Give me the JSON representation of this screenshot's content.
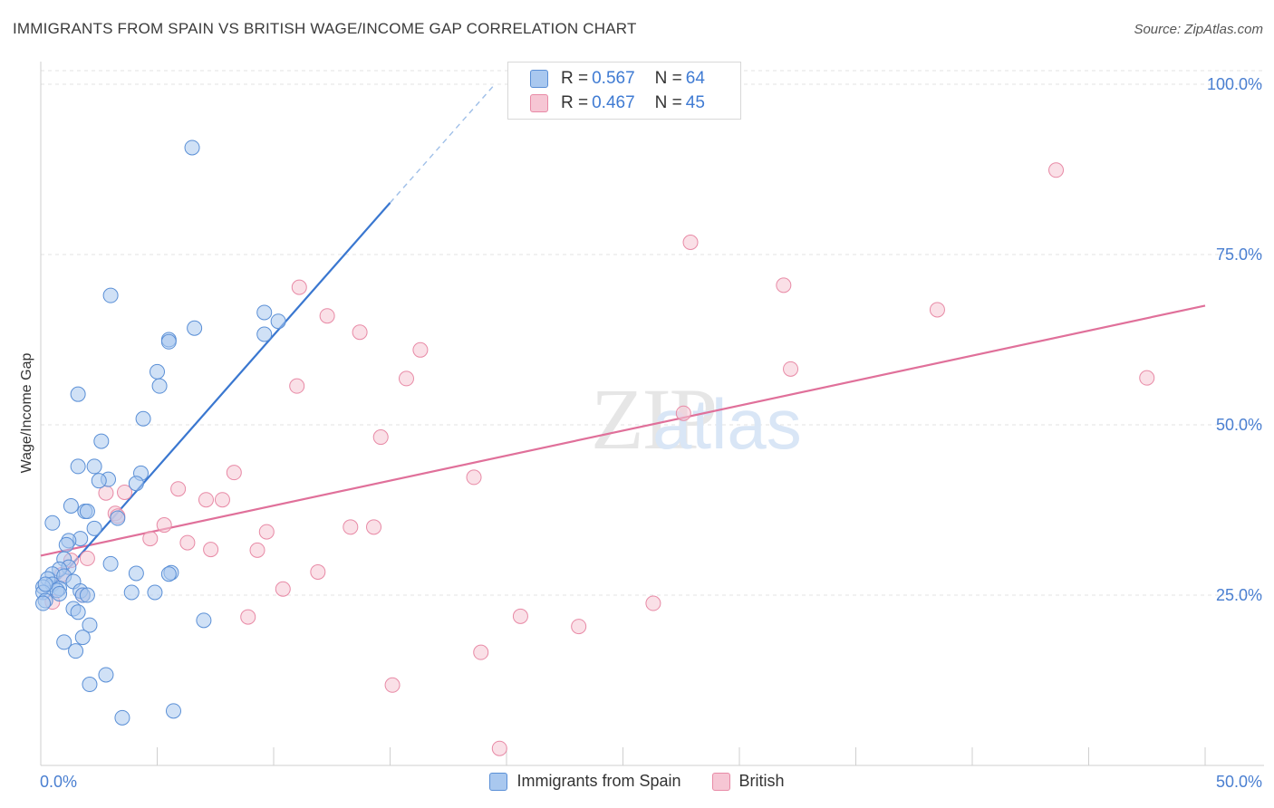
{
  "title": "IMMIGRANTS FROM SPAIN VS BRITISH WAGE/INCOME GAP CORRELATION CHART",
  "source": "Source: ZipAtlas.com",
  "legend": {
    "rows": [
      {
        "r_label": "R =",
        "r_value": "0.567",
        "n_label": "N =",
        "n_value": "64",
        "color": "#a9c8ef",
        "border": "#5a8fd6"
      },
      {
        "r_label": "R =",
        "r_value": "0.467",
        "n_label": "N =",
        "n_value": "45",
        "color": "#f6c6d4",
        "border": "#e88aa6"
      }
    ]
  },
  "bottom_legend": [
    "Immigrants from Spain",
    "British"
  ],
  "chart_data": {
    "type": "scatter",
    "title": "IMMIGRANTS FROM SPAIN VS BRITISH WAGE/INCOME GAP CORRELATION CHART",
    "xlabel": "",
    "ylabel": "Wage/Income Gap",
    "xlim": [
      0,
      50
    ],
    "ylim": [
      0,
      102
    ],
    "x_tick_labels": [
      "0.0%",
      "50.0%"
    ],
    "y_tick_labels": [
      "25.0%",
      "50.0%",
      "75.0%",
      "100.0%"
    ],
    "y_ticks": [
      25,
      50,
      75,
      100
    ],
    "grid": true,
    "legend_position": "top-center",
    "watermark": "ZIPatlas",
    "series": [
      {
        "name": "Immigrants from Spain",
        "color": "#a9c8ef",
        "edge": "#5a8fd6",
        "trend_color": "#3a77d0",
        "trend": {
          "x0": 0.05,
          "y0": 24.5,
          "x1": 15,
          "y1": 82.6,
          "dash_x1": 19.5,
          "dash_y1": 100
        },
        "points": [
          [
            6.5,
            90.7
          ],
          [
            3.0,
            69.0
          ],
          [
            9.6,
            66.5
          ],
          [
            10.2,
            65.2
          ],
          [
            6.6,
            64.2
          ],
          [
            9.6,
            63.3
          ],
          [
            5.5,
            62.5
          ],
          [
            5.5,
            62.2
          ],
          [
            5.0,
            57.8
          ],
          [
            5.1,
            55.7
          ],
          [
            1.6,
            54.5
          ],
          [
            4.4,
            50.9
          ],
          [
            2.6,
            47.6
          ],
          [
            1.6,
            43.9
          ],
          [
            2.3,
            43.9
          ],
          [
            4.3,
            42.9
          ],
          [
            2.9,
            42.0
          ],
          [
            2.5,
            41.8
          ],
          [
            4.1,
            41.4
          ],
          [
            1.3,
            38.1
          ],
          [
            1.9,
            37.3
          ],
          [
            2.0,
            37.3
          ],
          [
            3.3,
            36.3
          ],
          [
            0.5,
            35.6
          ],
          [
            2.3,
            34.8
          ],
          [
            1.7,
            33.3
          ],
          [
            1.2,
            33.0
          ],
          [
            1.1,
            32.4
          ],
          [
            1.0,
            30.3
          ],
          [
            3.0,
            29.6
          ],
          [
            1.2,
            29.1
          ],
          [
            0.8,
            28.8
          ],
          [
            4.1,
            28.2
          ],
          [
            5.6,
            28.3
          ],
          [
            5.5,
            28.1
          ],
          [
            0.5,
            28.1
          ],
          [
            1.0,
            27.8
          ],
          [
            0.3,
            27.4
          ],
          [
            1.4,
            27.0
          ],
          [
            0.5,
            26.6
          ],
          [
            0.1,
            26.2
          ],
          [
            0.8,
            26.0
          ],
          [
            0.7,
            25.7
          ],
          [
            1.7,
            25.6
          ],
          [
            0.1,
            25.4
          ],
          [
            3.9,
            25.4
          ],
          [
            4.9,
            25.4
          ],
          [
            1.8,
            25.0
          ],
          [
            2.0,
            25.0
          ],
          [
            0.8,
            25.2
          ],
          [
            0.2,
            24.2
          ],
          [
            0.1,
            23.8
          ],
          [
            1.4,
            23.0
          ],
          [
            1.6,
            22.5
          ],
          [
            7.0,
            21.3
          ],
          [
            2.1,
            20.6
          ],
          [
            1.0,
            18.1
          ],
          [
            1.8,
            18.8
          ],
          [
            1.5,
            16.8
          ],
          [
            2.8,
            13.3
          ],
          [
            2.1,
            11.9
          ],
          [
            5.7,
            8.0
          ],
          [
            3.5,
            7.0
          ],
          [
            0.2,
            26.6
          ]
        ]
      },
      {
        "name": "British",
        "color": "#f6c6d4",
        "edge": "#e88aa6",
        "trend_color": "#e0709a",
        "trend": {
          "x0": 0,
          "y0": 30.8,
          "x1": 50,
          "y1": 67.5
        },
        "points": [
          [
            43.6,
            87.4
          ],
          [
            27.9,
            76.8
          ],
          [
            31.9,
            70.5
          ],
          [
            11.1,
            70.2
          ],
          [
            38.5,
            66.9
          ],
          [
            12.3,
            66.0
          ],
          [
            13.7,
            63.6
          ],
          [
            16.3,
            61.0
          ],
          [
            32.2,
            58.2
          ],
          [
            15.7,
            56.8
          ],
          [
            47.5,
            56.9
          ],
          [
            11.0,
            55.7
          ],
          [
            27.6,
            51.7
          ],
          [
            14.6,
            48.2
          ],
          [
            18.6,
            42.3
          ],
          [
            8.3,
            43.0
          ],
          [
            5.9,
            40.6
          ],
          [
            3.6,
            40.1
          ],
          [
            2.8,
            40.0
          ],
          [
            7.1,
            39.0
          ],
          [
            7.8,
            39.0
          ],
          [
            3.2,
            37.0
          ],
          [
            3.3,
            36.6
          ],
          [
            5.3,
            35.3
          ],
          [
            13.3,
            35.0
          ],
          [
            14.3,
            35.0
          ],
          [
            9.7,
            34.3
          ],
          [
            4.7,
            33.3
          ],
          [
            6.3,
            32.7
          ],
          [
            7.3,
            31.7
          ],
          [
            9.3,
            31.6
          ],
          [
            2.0,
            30.4
          ],
          [
            1.3,
            30.1
          ],
          [
            11.9,
            28.4
          ],
          [
            10.4,
            25.9
          ],
          [
            26.3,
            23.8
          ],
          [
            8.9,
            21.8
          ],
          [
            20.6,
            21.9
          ],
          [
            23.1,
            20.4
          ],
          [
            18.9,
            16.6
          ],
          [
            15.1,
            11.8
          ],
          [
            19.7,
            2.5
          ],
          [
            0.5,
            24.0
          ],
          [
            1.8,
            25.0
          ],
          [
            0.9,
            28.0
          ]
        ]
      }
    ]
  }
}
